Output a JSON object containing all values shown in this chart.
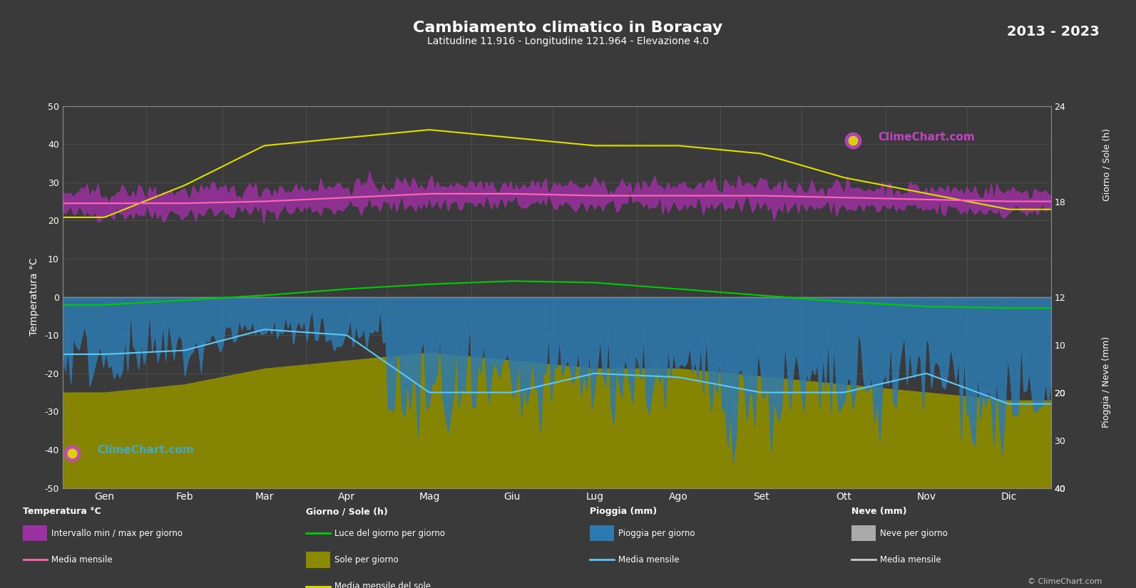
{
  "title": "Cambiamento climatico in Boracay",
  "subtitle": "Latitudine 11.916 - Longitudine 121.964 - Elevazione 4.0",
  "year_range": "2013 - 2023",
  "background_color": "#3a3a3a",
  "plot_bg_color": "#3a3a3a",
  "months": [
    "Gen",
    "Feb",
    "Mar",
    "Apr",
    "Mag",
    "Giu",
    "Lug",
    "Ago",
    "Set",
    "Ott",
    "Nov",
    "Dic"
  ],
  "temp_ylim": [
    -50,
    50
  ],
  "temp_min_mean": [
    22.0,
    22.0,
    22.5,
    23.5,
    24.5,
    24.5,
    24.0,
    24.0,
    24.0,
    23.5,
    23.0,
    22.5
  ],
  "temp_max_mean": [
    27.0,
    27.5,
    28.0,
    29.0,
    29.5,
    29.5,
    29.0,
    29.0,
    29.0,
    28.5,
    28.0,
    27.5
  ],
  "temp_monthly_mean": [
    24.5,
    24.5,
    25.0,
    26.0,
    27.0,
    27.0,
    26.5,
    26.5,
    26.5,
    26.0,
    25.5,
    25.0
  ],
  "daylight_hours": [
    11.5,
    11.8,
    12.1,
    12.5,
    12.8,
    13.0,
    12.9,
    12.5,
    12.1,
    11.7,
    11.4,
    11.3
  ],
  "sunshine_hours": [
    6.0,
    6.5,
    7.5,
    8.0,
    8.5,
    8.0,
    7.5,
    7.5,
    7.0,
    6.5,
    6.0,
    5.5
  ],
  "sunshine_mean": [
    17.0,
    19.0,
    21.5,
    22.0,
    22.5,
    22.0,
    21.5,
    21.5,
    21.0,
    19.5,
    18.5,
    17.5
  ],
  "rain_monthly_mean_neg": [
    -15.0,
    -14.0,
    -8.5,
    -10.0,
    -25.0,
    -25.0,
    -20.0,
    -21.0,
    -25.0,
    -25.0,
    -20.0,
    -28.0
  ],
  "colors": {
    "temp_band_fill": "#9b30a0",
    "temp_mean_line": "#ff69b4",
    "daylight_line": "#00cc00",
    "sunshine_bar": "#8a8a00",
    "sunshine_mean_line": "#dddd00",
    "rain_bar": "#2d7ab0",
    "rain_mean_line": "#5bc8f5",
    "snow_bar": "#aaaaaa",
    "snow_mean_line": "#cccccc",
    "grid": "#666666",
    "text": "#ffffff",
    "axis_line": "#888888"
  },
  "legend": {
    "temp_section": "Temperatura °C",
    "temp_band_label": "Intervallo min / max per giorno",
    "temp_mean_label": "Media mensile",
    "sun_section": "Giorno / Sole (h)",
    "daylight_label": "Luce del giorno per giorno",
    "sunshine_bar_label": "Sole per giorno",
    "sunshine_mean_label": "Media mensile del sole",
    "rain_section": "Pioggia (mm)",
    "rain_bar_label": "Pioggia per giorno",
    "rain_mean_label": "Media mensile",
    "snow_section": "Neve (mm)",
    "snow_bar_label": "Neve per giorno",
    "snow_mean_label": "Media mensile"
  },
  "watermark": "ClimeChart.com",
  "copyright": "© ClimeChart.com"
}
